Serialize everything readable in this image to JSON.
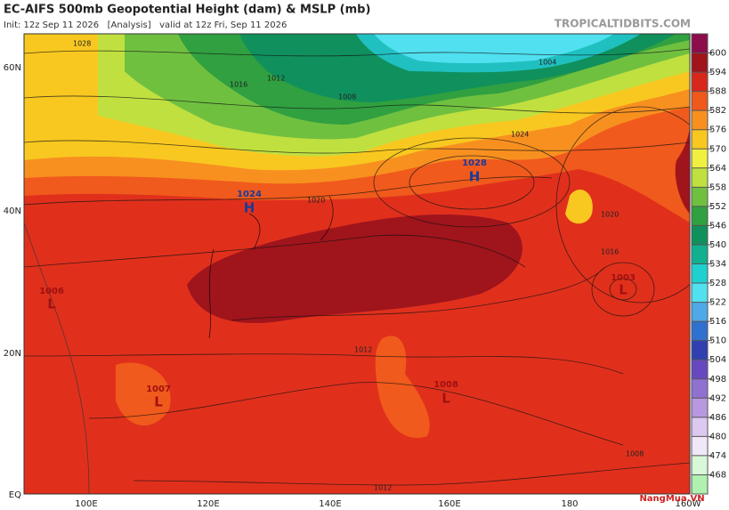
{
  "header": {
    "title": "EC-AIFS 500mb Geopotential Height (dam) & MSLP (mb)",
    "subtitle": "Init: 12z Sep 11 2026   [Analysis]   valid at 12z Fri, Sep 11 2026",
    "site": "TROPICALTIDBITS.COM"
  },
  "latitude_labels": [
    "60N",
    "40N",
    "20N",
    "EQ"
  ],
  "longitude_labels": [
    "100E",
    "120E",
    "140E",
    "160E",
    "180",
    "160W"
  ],
  "colorbar": {
    "labels": [
      600,
      594,
      588,
      582,
      576,
      570,
      564,
      558,
      552,
      546,
      540,
      534,
      528,
      522,
      516,
      510,
      504,
      498,
      492,
      486,
      480,
      474,
      468
    ],
    "colors": [
      "#8c0c4c",
      "#a0141c",
      "#d8281c",
      "#f0581c",
      "#f89020",
      "#f8c820",
      "#f0f040",
      "#c0e040",
      "#70c040",
      "#30a040",
      "#10905c",
      "#10b090",
      "#20d0d0",
      "#50e0f0",
      "#50a8e8",
      "#3070d0",
      "#3040b0",
      "#6848c0",
      "#9070d0",
      "#b898e0",
      "#dcc8f0",
      "#f0e8f8",
      "#d8f8d8",
      "#b0f0b0"
    ]
  },
  "pressure_centers": [
    {
      "letter": "H",
      "value": "1028"
    },
    {
      "letter": "H",
      "value": "1024"
    },
    {
      "letter": "L",
      "value": "1006"
    },
    {
      "letter": "L",
      "value": "1007"
    },
    {
      "letter": "L",
      "value": "1008"
    },
    {
      "letter": "L",
      "value": "1003"
    }
  ],
  "contour_labels": [
    "1028",
    "1016",
    "1012",
    "1008",
    "1004",
    "1024",
    "1020",
    "1020",
    "1016",
    "1012",
    "1008",
    "1012"
  ],
  "watermark": "NangMua.VN"
}
